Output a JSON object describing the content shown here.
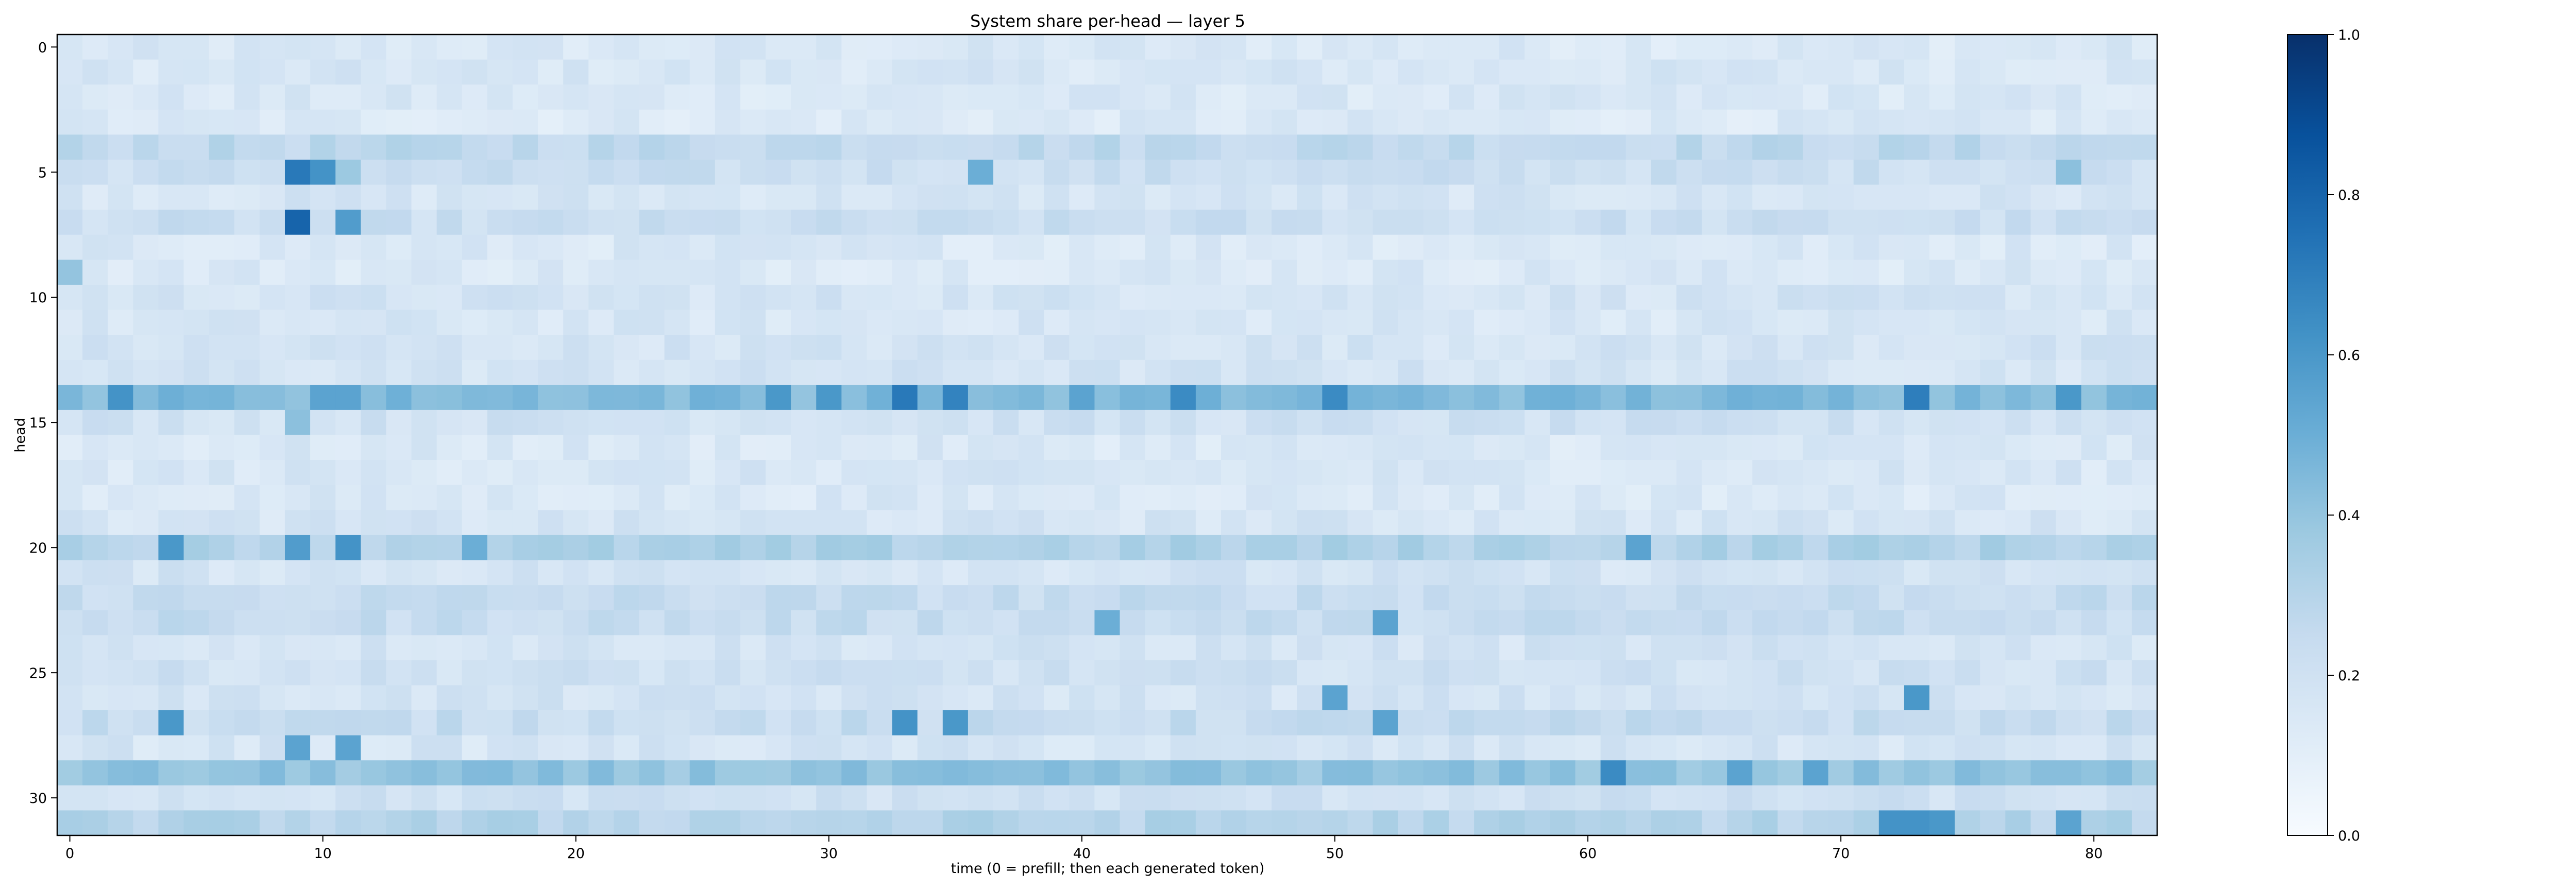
{
  "chart_data": {
    "type": "heatmap",
    "title": "System share per-head — layer 5",
    "xlabel": "time (0 = prefill; then each generated token)",
    "ylabel": "head",
    "x_range": [
      0,
      82
    ],
    "y_range": [
      0,
      31
    ],
    "x_ticks": [
      0,
      10,
      20,
      30,
      40,
      50,
      60,
      70,
      80
    ],
    "y_ticks": [
      0,
      5,
      10,
      15,
      20,
      25,
      30
    ],
    "colormap": "Blues",
    "colorbar": {
      "min": 0.0,
      "max": 1.0,
      "ticks": [
        "0.0",
        "0.2",
        "0.4",
        "0.6",
        "0.8",
        "1.0"
      ]
    },
    "row_base_values": [
      0.15,
      0.16,
      0.15,
      0.14,
      0.27,
      0.22,
      0.17,
      0.22,
      0.15,
      0.15,
      0.18,
      0.16,
      0.18,
      0.18,
      0.45,
      0.2,
      0.15,
      0.16,
      0.15,
      0.17,
      0.32,
      0.18,
      0.24,
      0.24,
      0.18,
      0.2,
      0.18,
      0.24,
      0.17,
      0.4,
      0.2,
      0.3
    ],
    "highlights": [
      {
        "head": 5,
        "t": 9,
        "value": 0.72
      },
      {
        "head": 5,
        "t": 10,
        "value": 0.62
      },
      {
        "head": 5,
        "t": 11,
        "value": 0.38
      },
      {
        "head": 5,
        "t": 36,
        "value": 0.5
      },
      {
        "head": 5,
        "t": 79,
        "value": 0.42
      },
      {
        "head": 7,
        "t": 9,
        "value": 0.8
      },
      {
        "head": 7,
        "t": 11,
        "value": 0.58
      },
      {
        "head": 9,
        "t": 0,
        "value": 0.4
      },
      {
        "head": 14,
        "t": 2,
        "value": 0.62
      },
      {
        "head": 14,
        "t": 10,
        "value": 0.55
      },
      {
        "head": 14,
        "t": 11,
        "value": 0.55
      },
      {
        "head": 14,
        "t": 28,
        "value": 0.6
      },
      {
        "head": 14,
        "t": 30,
        "value": 0.6
      },
      {
        "head": 14,
        "t": 33,
        "value": 0.72
      },
      {
        "head": 14,
        "t": 35,
        "value": 0.68
      },
      {
        "head": 14,
        "t": 40,
        "value": 0.55
      },
      {
        "head": 14,
        "t": 44,
        "value": 0.65
      },
      {
        "head": 14,
        "t": 50,
        "value": 0.65
      },
      {
        "head": 14,
        "t": 73,
        "value": 0.7
      },
      {
        "head": 14,
        "t": 79,
        "value": 0.6
      },
      {
        "head": 15,
        "t": 9,
        "value": 0.42
      },
      {
        "head": 20,
        "t": 4,
        "value": 0.6
      },
      {
        "head": 20,
        "t": 9,
        "value": 0.58
      },
      {
        "head": 20,
        "t": 11,
        "value": 0.62
      },
      {
        "head": 20,
        "t": 16,
        "value": 0.5
      },
      {
        "head": 20,
        "t": 62,
        "value": 0.55
      },
      {
        "head": 23,
        "t": 41,
        "value": 0.5
      },
      {
        "head": 23,
        "t": 52,
        "value": 0.55
      },
      {
        "head": 26,
        "t": 50,
        "value": 0.55
      },
      {
        "head": 26,
        "t": 73,
        "value": 0.6
      },
      {
        "head": 27,
        "t": 4,
        "value": 0.6
      },
      {
        "head": 27,
        "t": 33,
        "value": 0.62
      },
      {
        "head": 27,
        "t": 35,
        "value": 0.6
      },
      {
        "head": 27,
        "t": 52,
        "value": 0.55
      },
      {
        "head": 28,
        "t": 9,
        "value": 0.55
      },
      {
        "head": 28,
        "t": 11,
        "value": 0.55
      },
      {
        "head": 29,
        "t": 61,
        "value": 0.65
      },
      {
        "head": 29,
        "t": 66,
        "value": 0.55
      },
      {
        "head": 29,
        "t": 69,
        "value": 0.55
      },
      {
        "head": 31,
        "t": 72,
        "value": 0.62
      },
      {
        "head": 31,
        "t": 73,
        "value": 0.62
      },
      {
        "head": 31,
        "t": 74,
        "value": 0.6
      },
      {
        "head": 31,
        "t": 79,
        "value": 0.55
      }
    ]
  }
}
